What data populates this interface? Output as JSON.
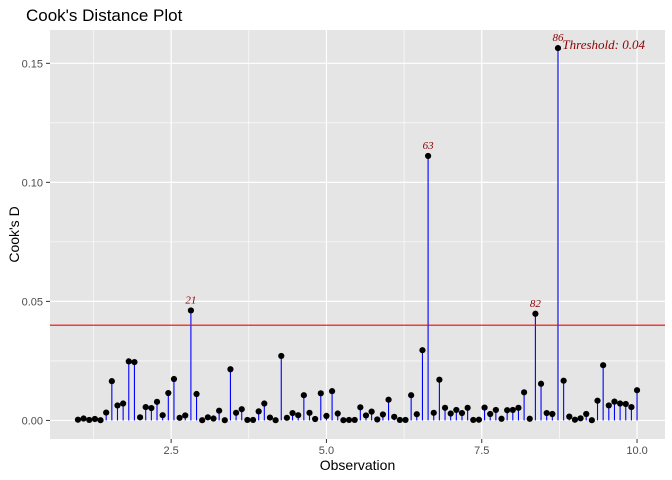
{
  "chart_data": {
    "type": "lollipop",
    "title": "Cook's Distance Plot",
    "xlabel": "Observation",
    "ylabel": "Cook's D",
    "xlim": [
      0.55,
      10.45
    ],
    "ylim": [
      -0.0078,
      0.164
    ],
    "x_ticks": [
      2.5,
      5.0,
      7.5,
      10.0
    ],
    "x_tick_labels": [
      "2.5",
      "5.0",
      "7.5",
      "10.0"
    ],
    "y_ticks": [
      0.0,
      0.05,
      0.1,
      0.15
    ],
    "y_tick_labels": [
      "0.00",
      "0.05",
      "0.10",
      "0.15"
    ],
    "grid": true,
    "threshold": 0.04,
    "threshold_label": "Threshold: 0.04",
    "colors": {
      "panel": "#e5e5e5",
      "grid": "#ffffff",
      "stem": "#0000ff",
      "point": "#000000",
      "threshold": "#ff0000",
      "label": "#8b0000"
    },
    "x": [
      1.0,
      1.0909,
      1.1818,
      1.2727,
      1.3636,
      1.4545,
      1.5455,
      1.6364,
      1.7273,
      1.8182,
      1.9091,
      2.0,
      2.0909,
      2.1818,
      2.2727,
      2.3636,
      2.4545,
      2.5455,
      2.6364,
      2.7273,
      2.8182,
      2.9091,
      3.0,
      3.0909,
      3.1818,
      3.2727,
      3.3636,
      3.4545,
      3.5455,
      3.6364,
      3.7273,
      3.8182,
      3.9091,
      4.0,
      4.0909,
      4.1818,
      4.2727,
      4.3636,
      4.4545,
      4.5455,
      4.6364,
      4.7273,
      4.8182,
      4.9091,
      5.0,
      5.0909,
      5.1818,
      5.2727,
      5.3636,
      5.4545,
      5.5455,
      5.6364,
      5.7273,
      5.8182,
      5.9091,
      6.0,
      6.0909,
      6.1818,
      6.2727,
      6.3636,
      6.4545,
      6.5455,
      6.6364,
      6.7273,
      6.8182,
      6.9091,
      7.0,
      7.0909,
      7.1818,
      7.2727,
      7.3636,
      7.4545,
      7.5455,
      7.6364,
      7.7273,
      7.8182,
      7.9091,
      8.0,
      8.0909,
      8.1818,
      8.2727,
      8.3636,
      8.4545,
      8.5455,
      8.6364,
      8.7273,
      8.8182,
      8.9091,
      9.0,
      9.0909,
      9.1818,
      9.2727,
      9.3636,
      9.4545,
      9.5455,
      9.6364,
      9.7273,
      9.8182,
      9.9091,
      10.0
    ],
    "values": [
      0.0003,
      0.0008,
      0.0002,
      0.0006,
      0.0001,
      0.0033,
      0.0165,
      0.0063,
      0.0071,
      0.0248,
      0.0245,
      0.0013,
      0.0056,
      0.0052,
      0.0078,
      0.0022,
      0.0115,
      0.0174,
      0.0011,
      0.0021,
      0.0462,
      0.0111,
      0.0001,
      0.0013,
      0.0008,
      0.0041,
      0.0001,
      0.0215,
      0.0032,
      0.0047,
      0.0002,
      0.0002,
      0.0038,
      0.0071,
      0.0012,
      0.0001,
      0.0271,
      0.0011,
      0.0031,
      0.0022,
      0.0106,
      0.0032,
      0.0006,
      0.0114,
      0.0019,
      0.0123,
      0.0029,
      0.0001,
      0.0002,
      0.0002,
      0.0055,
      0.0021,
      0.0037,
      0.0004,
      0.0025,
      0.0087,
      0.0015,
      0.0002,
      0.0002,
      0.0106,
      0.0026,
      0.0295,
      0.1111,
      0.0032,
      0.0171,
      0.0053,
      0.0029,
      0.0044,
      0.0031,
      0.0053,
      0.0002,
      0.0003,
      0.0054,
      0.0027,
      0.0044,
      0.0007,
      0.0043,
      0.0044,
      0.0053,
      0.0118,
      0.0007,
      0.0448,
      0.0154,
      0.0031,
      0.0027,
      0.1564,
      0.0167,
      0.0016,
      0.0003,
      0.0009,
      0.0027,
      0.0001,
      0.0083,
      0.0232,
      0.0063,
      0.0079,
      0.0071,
      0.0069,
      0.0056,
      0.0127
    ],
    "labeled_points": [
      {
        "x": 2.8182,
        "y": 0.0462,
        "label": "21"
      },
      {
        "x": 6.6364,
        "y": 0.1111,
        "label": "63"
      },
      {
        "x": 8.3636,
        "y": 0.0448,
        "label": "82"
      },
      {
        "x": 8.7273,
        "y": 0.1564,
        "label": "86"
      }
    ]
  }
}
